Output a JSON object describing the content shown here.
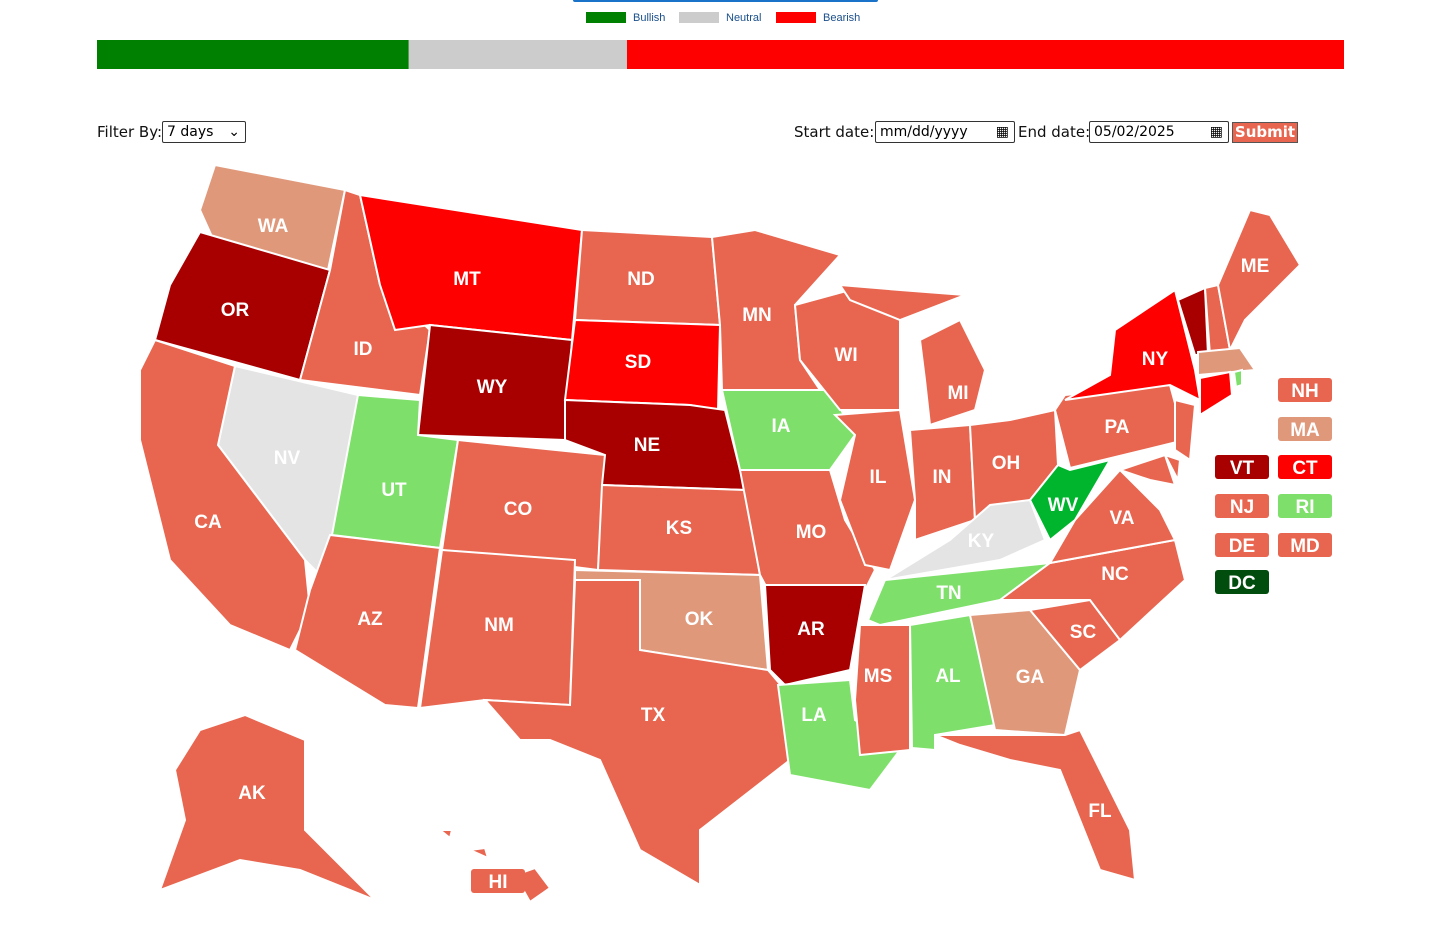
{
  "legend": {
    "items": [
      {
        "label": "Bullish",
        "color": "#008000"
      },
      {
        "label": "Neutral",
        "color": "#cccccc"
      },
      {
        "label": "Bearish",
        "color": "#ff0000"
      }
    ]
  },
  "sentiment_bar": {
    "segments": [
      {
        "value": 25,
        "color": "#008000"
      },
      {
        "value": 17.5,
        "color": "#cccccc"
      },
      {
        "value": 57.5,
        "color": "#ff0000"
      }
    ]
  },
  "filters": {
    "filter_label": "Filter By:",
    "filter_value": "7 days",
    "start_label": "Start date:",
    "start_value": "mm/dd/yyyy",
    "end_label": "End date:",
    "end_value": "05/02/2025",
    "submit": "Submit"
  },
  "states": [
    {
      "label": "WA",
      "color": "#e0987b"
    },
    {
      "label": "OR",
      "color": "#a80000"
    },
    {
      "label": "ID",
      "color": "#e8654f"
    },
    {
      "label": "MT",
      "color": "#ff0000"
    },
    {
      "label": "WY",
      "color": "#a80000"
    },
    {
      "label": "NV",
      "color": "#e4e4e4"
    },
    {
      "label": "UT",
      "color": "#7ee06a"
    },
    {
      "label": "CA",
      "color": "#e8654f"
    },
    {
      "label": "AZ",
      "color": "#e8654f"
    },
    {
      "label": "CO",
      "color": "#e8654f"
    },
    {
      "label": "NM",
      "color": "#e8654f"
    },
    {
      "label": "ND",
      "color": "#e8654f"
    },
    {
      "label": "SD",
      "color": "#ff0000"
    },
    {
      "label": "NE",
      "color": "#a80000"
    },
    {
      "label": "KS",
      "color": "#e8654f"
    },
    {
      "label": "OK",
      "color": "#e0987b"
    },
    {
      "label": "TX",
      "color": "#e8654f"
    },
    {
      "label": "MN",
      "color": "#e8654f"
    },
    {
      "label": "IA",
      "color": "#7ee06a"
    },
    {
      "label": "MO",
      "color": "#e8654f"
    },
    {
      "label": "AR",
      "color": "#a80000"
    },
    {
      "label": "LA",
      "color": "#7ee06a"
    },
    {
      "label": "WI",
      "color": "#e8654f"
    },
    {
      "label": "IL",
      "color": "#e8654f"
    },
    {
      "label": "MI",
      "color": "#e8654f"
    },
    {
      "label": "IN",
      "color": "#e8654f"
    },
    {
      "label": "OH",
      "color": "#e8654f"
    },
    {
      "label": "KY",
      "color": "#e4e4e4"
    },
    {
      "label": "TN",
      "color": "#7ee06a"
    },
    {
      "label": "MS",
      "color": "#e8654f"
    },
    {
      "label": "AL",
      "color": "#7ee06a"
    },
    {
      "label": "GA",
      "color": "#e0987b"
    },
    {
      "label": "FL",
      "color": "#e8654f"
    },
    {
      "label": "SC",
      "color": "#e8654f"
    },
    {
      "label": "NC",
      "color": "#e8654f"
    },
    {
      "label": "VA",
      "color": "#e8654f"
    },
    {
      "label": "WV",
      "color": "#00b52e"
    },
    {
      "label": "PA",
      "color": "#e8654f"
    },
    {
      "label": "NY",
      "color": "#ff0000"
    },
    {
      "label": "VT",
      "color": "#a80000"
    },
    {
      "label": "NH",
      "color": "#e8654f"
    },
    {
      "label": "ME",
      "color": "#e8654f"
    },
    {
      "label": "MA",
      "color": "#e0987b"
    },
    {
      "label": "CT",
      "color": "#ff0000"
    },
    {
      "label": "RI",
      "color": "#7ee06a"
    },
    {
      "label": "NJ",
      "color": "#e8654f"
    },
    {
      "label": "DE",
      "color": "#e8654f"
    },
    {
      "label": "MD",
      "color": "#e8654f"
    },
    {
      "label": "AK",
      "color": "#e8654f"
    },
    {
      "label": "HI",
      "color": "#e8654f"
    },
    {
      "label": "DC",
      "color": "#004d0d"
    }
  ]
}
